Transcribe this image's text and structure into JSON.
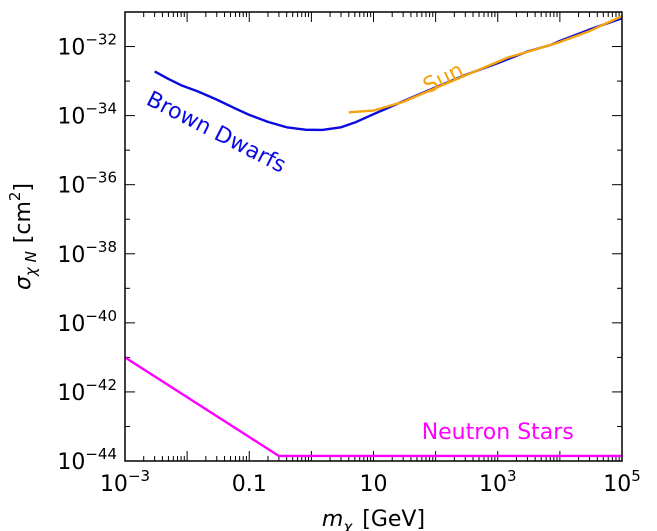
{
  "chart_data": {
    "type": "line",
    "xscale": "log",
    "yscale": "log",
    "xlim": [
      0.001,
      100000
    ],
    "ylim": [
      1e-44,
      1e-31
    ],
    "xlabel": {
      "main": "m",
      "sub": "χ",
      "unit": "[GeV]"
    },
    "ylabel": {
      "main": "σ",
      "sub": "χ N",
      "unit": "[cm",
      "sup": "2",
      "close": "]"
    },
    "xticks": [
      {
        "value": 0.001,
        "base": "10",
        "exp": "−3"
      },
      {
        "value": 0.1,
        "text": "0.1"
      },
      {
        "value": 10,
        "text": "10"
      },
      {
        "value": 1000,
        "base": "10",
        "exp": "3"
      },
      {
        "value": 100000,
        "base": "10",
        "exp": "5"
      }
    ],
    "yticks": [
      {
        "value": 1e-44,
        "base": "10",
        "exp": "−44"
      },
      {
        "value": 1e-42,
        "base": "10",
        "exp": "−42"
      },
      {
        "value": 1e-40,
        "base": "10",
        "exp": "−40"
      },
      {
        "value": 1e-38,
        "base": "10",
        "exp": "−38"
      },
      {
        "value": 1e-36,
        "base": "10",
        "exp": "−36"
      },
      {
        "value": 1e-34,
        "base": "10",
        "exp": "−34"
      },
      {
        "value": 1e-32,
        "base": "10",
        "exp": "−32"
      }
    ],
    "grid": false,
    "series": [
      {
        "name": "Brown Dwarfs",
        "color": "#0a0ae0",
        "x": [
          0.003,
          0.005,
          0.008,
          0.015,
          0.03,
          0.06,
          0.1,
          0.2,
          0.4,
          0.8,
          1.5,
          3,
          5,
          10,
          30,
          100,
          300,
          1000,
          3000,
          5000,
          7000,
          10000,
          30000,
          100000
        ],
        "y": [
          1.9e-33,
          1.15e-33,
          7.6e-34,
          5e-34,
          2.9e-34,
          1.6e-34,
          1.05e-34,
          6.6e-35,
          4.6e-35,
          3.9e-35,
          3.85e-35,
          4.6e-35,
          6.3e-35,
          1.1e-34,
          2.6e-34,
          6.6e-34,
          1.5e-33,
          3.3e-33,
          7.2e-33,
          9.3e-33,
          1.1e-32,
          1.45e-32,
          3.1e-32,
          6.6e-32
        ]
      },
      {
        "name": "Sun",
        "color": "#f5a30a",
        "x": [
          4,
          10,
          30,
          100,
          300,
          1000,
          1500,
          3000,
          10000,
          30000,
          100000
        ],
        "y": [
          1.25e-34,
          1.4e-34,
          2.5e-34,
          6.3e-34,
          1.45e-33,
          3.6e-33,
          4.9e-33,
          7e-33,
          1.35e-32,
          2.8e-32,
          7.6e-32
        ]
      },
      {
        "name": "Neutron Stars",
        "color": "#ff00ff",
        "x": [
          0.001,
          0.3,
          100000
        ],
        "y": [
          1e-41,
          1.4e-44,
          1.4e-44
        ]
      }
    ],
    "annotations": [
      {
        "text": "Brown Dwarfs",
        "series": 0
      },
      {
        "text": "Sun",
        "series": 1
      },
      {
        "text": "Neutron Stars",
        "series": 2
      }
    ]
  }
}
